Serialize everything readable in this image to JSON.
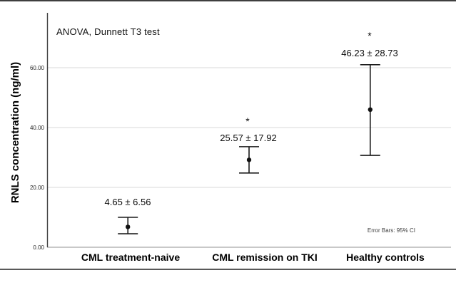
{
  "chart_data": {
    "type": "errorbar",
    "annotation": "ANOVA, Dunnett T3 test",
    "ylabel": "RNLS concentration (ng/ml)",
    "note": "Error Bars: 95% CI",
    "sig_marker": "*",
    "categories": [
      "CML treatment-naive",
      "CML remission on TKI",
      "Healthy controls"
    ],
    "yticks": [
      0,
      20,
      40,
      60
    ],
    "ytick_labels": [
      "0.00",
      "20.00",
      "40.00",
      "60.00"
    ],
    "ylim": [
      0,
      78
    ],
    "grid": "horizontal-light",
    "legend": "none",
    "series": [
      {
        "category": "CML treatment-naive",
        "label": "4.65 ± 6.56",
        "marker": 6.8,
        "ci_low": 4.5,
        "ci_high": 10.0,
        "significant": false
      },
      {
        "category": "CML remission on TKI",
        "label": "25.57 ± 17.92",
        "marker": 29.2,
        "ci_low": 24.8,
        "ci_high": 33.6,
        "significant": true
      },
      {
        "category": "Healthy controls",
        "label": "46.23 ± 28.73",
        "marker": 46.0,
        "ci_low": 30.7,
        "ci_high": 61.0,
        "significant": true
      }
    ],
    "colors": {
      "gridline": "#d9d9d9",
      "zero_line": "#a8a8a8",
      "axis": "#3f3f3f",
      "errorbar": "#1a1a1a",
      "marker_fill": "#111111"
    }
  }
}
